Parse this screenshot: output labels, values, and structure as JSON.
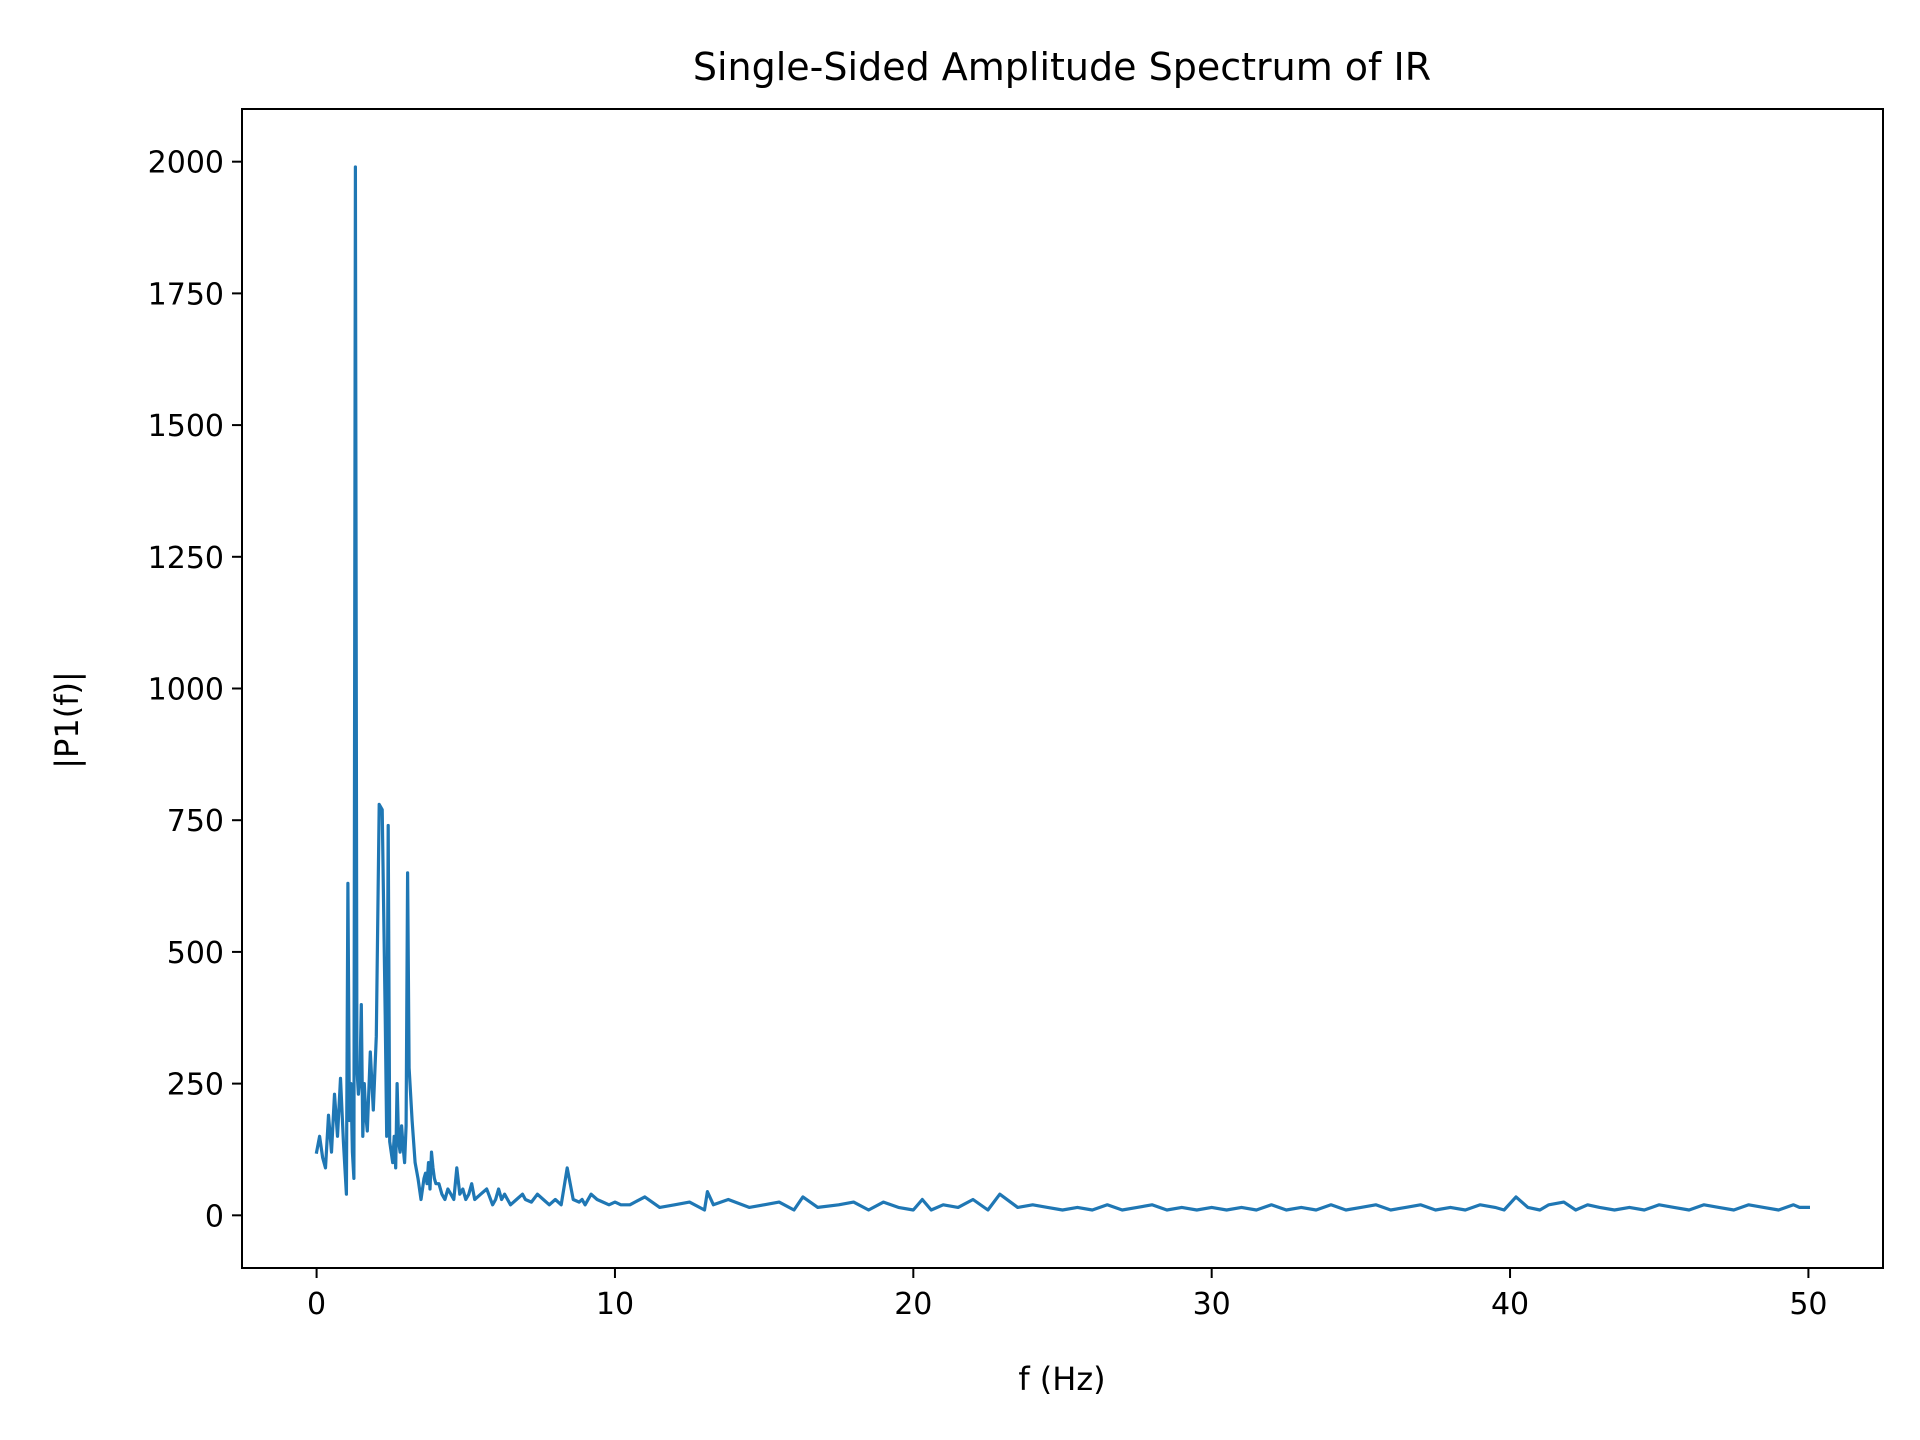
{
  "chart_data": {
    "type": "line",
    "title": "Single-Sided Amplitude Spectrum of IR",
    "xlabel": "f (Hz)",
    "ylabel": "|P1(f)|",
    "xlim": [
      -2.5,
      52.5
    ],
    "ylim": [
      -100,
      2100
    ],
    "xticks": [
      0,
      10,
      20,
      30,
      40,
      50
    ],
    "xtick_labels": [
      "0",
      "10",
      "20",
      "30",
      "40",
      "50"
    ],
    "yticks": [
      0,
      250,
      500,
      750,
      1000,
      1250,
      1500,
      1750,
      2000
    ],
    "ytick_labels": [
      "0",
      "250",
      "500",
      "750",
      "1000",
      "1250",
      "1500",
      "1750",
      "2000"
    ],
    "grid": false,
    "legend": "none",
    "line_color": "#1f77b4",
    "series": [
      {
        "x": [
          0.0,
          0.1,
          0.2,
          0.3,
          0.4,
          0.5,
          0.6,
          0.7,
          0.8,
          0.9,
          1.0,
          1.05,
          1.1,
          1.15,
          1.2,
          1.25,
          1.3,
          1.35,
          1.4,
          1.45,
          1.5,
          1.55,
          1.6,
          1.65,
          1.7,
          1.8,
          1.9,
          2.0,
          2.1,
          2.2,
          2.3,
          2.35,
          2.4,
          2.45,
          2.5,
          2.55,
          2.6,
          2.65,
          2.7,
          2.75,
          2.8,
          2.85,
          2.9,
          2.95,
          3.0,
          3.05,
          3.1,
          3.2,
          3.3,
          3.4,
          3.5,
          3.6,
          3.65,
          3.7,
          3.75,
          3.8,
          3.85,
          3.9,
          3.95,
          4.0,
          4.1,
          4.2,
          4.3,
          4.4,
          4.5,
          4.6,
          4.7,
          4.8,
          4.9,
          5.0,
          5.1,
          5.2,
          5.3,
          5.5,
          5.7,
          5.9,
          6.0,
          6.1,
          6.2,
          6.3,
          6.5,
          6.7,
          6.9,
          7.0,
          7.2,
          7.4,
          7.6,
          7.8,
          8.0,
          8.2,
          8.4,
          8.6,
          8.8,
          8.9,
          9.0,
          9.2,
          9.4,
          9.6,
          9.8,
          10.0,
          10.2,
          10.5,
          11.0,
          11.5,
          12.0,
          12.5,
          13.0,
          13.1,
          13.3,
          13.8,
          14.5,
          15.0,
          15.5,
          16.0,
          16.3,
          16.8,
          17.5,
          18.0,
          18.5,
          19.0,
          19.5,
          20.0,
          20.3,
          20.6,
          21.0,
          21.5,
          22.0,
          22.5,
          22.9,
          23.5,
          24.0,
          24.5,
          25.0,
          25.5,
          26.0,
          26.5,
          27.0,
          27.5,
          28.0,
          28.5,
          29.0,
          29.5,
          30.0,
          30.5,
          31.0,
          31.5,
          32.0,
          32.5,
          33.0,
          33.5,
          34.0,
          34.5,
          35.0,
          35.5,
          36.0,
          36.5,
          37.0,
          37.5,
          38.0,
          38.5,
          39.0,
          39.5,
          39.8,
          40.2,
          40.6,
          41.0,
          41.3,
          41.8,
          42.2,
          42.6,
          43.0,
          43.5,
          44.0,
          44.5,
          45.0,
          45.5,
          46.0,
          46.5,
          47.0,
          47.5,
          48.0,
          48.5,
          49.0,
          49.5,
          49.7,
          50.0
        ],
        "y": [
          120,
          150,
          110,
          90,
          190,
          120,
          230,
          150,
          260,
          140,
          40,
          630,
          180,
          250,
          120,
          70,
          1990,
          280,
          230,
          260,
          400,
          150,
          250,
          190,
          160,
          310,
          200,
          340,
          780,
          770,
          380,
          150,
          740,
          140,
          120,
          100,
          150,
          90,
          250,
          140,
          120,
          170,
          130,
          100,
          170,
          650,
          280,
          180,
          100,
          70,
          30,
          70,
          80,
          60,
          100,
          50,
          120,
          90,
          70,
          60,
          60,
          40,
          30,
          50,
          40,
          30,
          90,
          40,
          50,
          30,
          40,
          60,
          30,
          40,
          50,
          20,
          30,
          50,
          30,
          40,
          20,
          30,
          40,
          30,
          25,
          40,
          30,
          20,
          30,
          20,
          90,
          30,
          25,
          30,
          20,
          40,
          30,
          25,
          20,
          25,
          20,
          20,
          35,
          15,
          20,
          25,
          10,
          45,
          20,
          30,
          15,
          20,
          25,
          10,
          35,
          15,
          20,
          25,
          10,
          25,
          15,
          10,
          30,
          10,
          20,
          15,
          30,
          10,
          40,
          15,
          20,
          15,
          10,
          15,
          10,
          20,
          10,
          15,
          20,
          10,
          15,
          10,
          15,
          10,
          15,
          10,
          20,
          10,
          15,
          10,
          20,
          10,
          15,
          20,
          10,
          15,
          20,
          10,
          15,
          10,
          20,
          15,
          10,
          35,
          15,
          10,
          20,
          25,
          10,
          20,
          15,
          10,
          15,
          10,
          20,
          15,
          10,
          20,
          15,
          10,
          20,
          15,
          10,
          20,
          15,
          15
        ]
      }
    ]
  }
}
